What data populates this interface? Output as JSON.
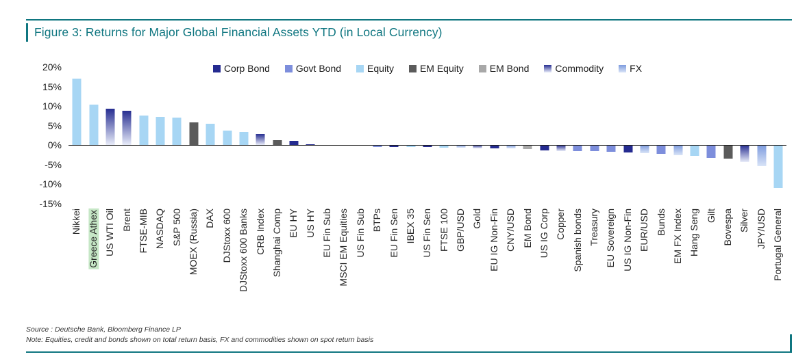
{
  "header": {
    "title": "Figure 3: Returns for Major Global Financial Assets YTD (in Local Currency)"
  },
  "footer": {
    "source": "Source : Deutsche Bank, Bloomberg Finance LP",
    "note": "Note: Equities, credit and bonds shown on total return basis, FX and commodities shown on spot return basis"
  },
  "colors": {
    "accent": "#0F7680",
    "highlight": "#C6E7C6",
    "axis_text": "#1a1a1a",
    "series": {
      "Corp Bond": {
        "type": "solid",
        "color": "#252B90"
      },
      "Govt Bond": {
        "type": "solid",
        "color": "#7D8EDC"
      },
      "Equity": {
        "type": "solid",
        "color": "#A7D6F4"
      },
      "EM Equity": {
        "type": "solid",
        "color": "#5B5B5B"
      },
      "EM Bond": {
        "type": "solid",
        "color": "#A8A8A8"
      },
      "Commodity": {
        "type": "gradient",
        "from": "#272E91",
        "to": "#E8ECF9"
      },
      "FX": {
        "type": "gradient",
        "from": "#7D9BDE",
        "to": "#D9E4F7"
      }
    }
  },
  "chart_data": {
    "type": "bar",
    "title": "Figure 3: Returns for Major Global Financial Assets YTD (in Local Currency)",
    "xlabel": "",
    "ylabel": "",
    "units": "%",
    "ylim": [
      -15,
      20
    ],
    "ytick_step": 5,
    "ytick_suffix": "%",
    "grid": false,
    "legend_position": "top",
    "legend": [
      "Corp Bond",
      "Govt Bond",
      "Equity",
      "EM Equity",
      "EM Bond",
      "Commodity",
      "FX"
    ],
    "bars": [
      {
        "label": "Nikkei",
        "value": 17.0,
        "series": "Equity"
      },
      {
        "label": "Greece Athex",
        "value": 10.3,
        "series": "Equity",
        "highlighted": true
      },
      {
        "label": "US WTI Oil",
        "value": 9.3,
        "series": "Commodity"
      },
      {
        "label": "Brent",
        "value": 8.8,
        "series": "Commodity"
      },
      {
        "label": "FTSE-MIB",
        "value": 7.5,
        "series": "Equity"
      },
      {
        "label": "NASDAQ",
        "value": 7.3,
        "series": "Equity"
      },
      {
        "label": "S&P 500",
        "value": 7.0,
        "series": "Equity"
      },
      {
        "label": "MOEX (Russia)",
        "value": 5.8,
        "series": "EM Equity"
      },
      {
        "label": "DAX",
        "value": 5.4,
        "series": "Equity"
      },
      {
        "label": "DJStoxx 600",
        "value": 3.7,
        "series": "Equity"
      },
      {
        "label": "DJStoxx 600 Banks",
        "value": 3.3,
        "series": "Equity"
      },
      {
        "label": "CRB Index",
        "value": 2.8,
        "series": "Commodity"
      },
      {
        "label": "Shanghai Comp",
        "value": 1.2,
        "series": "EM Equity"
      },
      {
        "label": "EU HY",
        "value": 1.1,
        "series": "Corp Bond"
      },
      {
        "label": "US HY",
        "value": 0.3,
        "series": "Corp Bond"
      },
      {
        "label": "EU Fin Sub",
        "value": 0.1,
        "series": "Corp Bond"
      },
      {
        "label": "MSCI EM Equities",
        "value": -0.1,
        "series": "EM Equity"
      },
      {
        "label": "US Fin Sub",
        "value": -0.2,
        "series": "Corp Bond"
      },
      {
        "label": "BTPs",
        "value": -0.4,
        "series": "Govt Bond"
      },
      {
        "label": "EU Fin Sen",
        "value": -0.4,
        "series": "Corp Bond"
      },
      {
        "label": "IBEX 35",
        "value": -0.5,
        "series": "Equity"
      },
      {
        "label": "US Fin Sen",
        "value": -0.5,
        "series": "Corp Bond"
      },
      {
        "label": "FTSE 100",
        "value": -0.6,
        "series": "Equity"
      },
      {
        "label": "GBP/USD",
        "value": -0.7,
        "series": "FX"
      },
      {
        "label": "Gold",
        "value": -0.8,
        "series": "Commodity"
      },
      {
        "label": "EU IG Non-Fin",
        "value": -0.9,
        "series": "Corp Bond"
      },
      {
        "label": "CNY/USD",
        "value": -0.9,
        "series": "FX"
      },
      {
        "label": "EM Bond",
        "value": -1.0,
        "series": "EM Bond"
      },
      {
        "label": "US IG Corp",
        "value": -1.4,
        "series": "Corp Bond"
      },
      {
        "label": "Copper",
        "value": -1.5,
        "series": "Commodity"
      },
      {
        "label": "Spanish bonds",
        "value": -1.5,
        "series": "Govt Bond"
      },
      {
        "label": "Treasury",
        "value": -1.6,
        "series": "Govt Bond"
      },
      {
        "label": "EU Sovereign",
        "value": -1.7,
        "series": "Govt Bond"
      },
      {
        "label": "US IG Non-Fin",
        "value": -1.8,
        "series": "Corp Bond"
      },
      {
        "label": "EUR/USD",
        "value": -2.1,
        "series": "FX"
      },
      {
        "label": "Bunds",
        "value": -2.3,
        "series": "Govt Bond"
      },
      {
        "label": "EM FX Index",
        "value": -2.5,
        "series": "FX"
      },
      {
        "label": "Hang Seng",
        "value": -2.8,
        "series": "Equity"
      },
      {
        "label": "Gilt",
        "value": -3.2,
        "series": "Govt Bond"
      },
      {
        "label": "Bovespa",
        "value": -3.5,
        "series": "EM Equity"
      },
      {
        "label": "Silver",
        "value": -4.4,
        "series": "Commodity"
      },
      {
        "label": "JPY/USD",
        "value": -5.4,
        "series": "FX"
      },
      {
        "label": "Portugal General",
        "value": -11.0,
        "series": "Equity"
      }
    ]
  }
}
